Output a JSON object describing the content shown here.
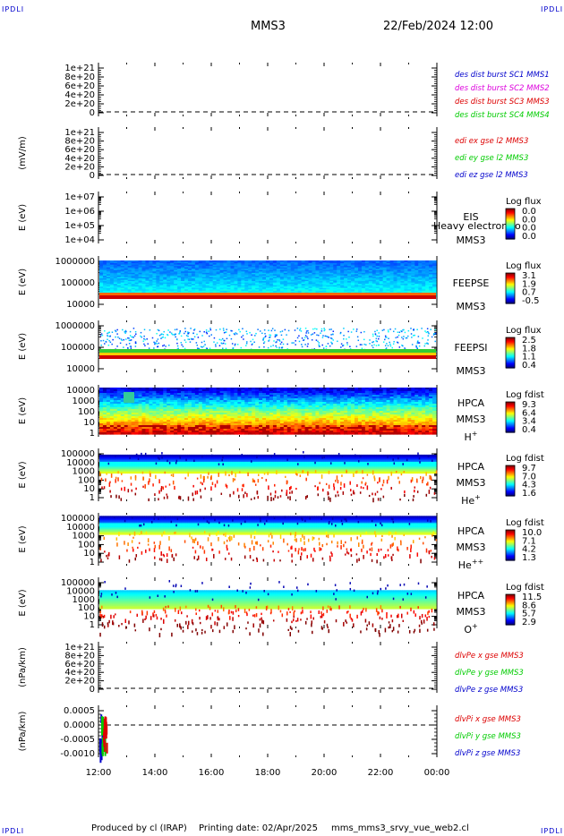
{
  "header": {
    "corner_tl": "IPDLI",
    "corner_tr": "IPDLI",
    "corner_bl": "IPDLI",
    "corner_br": "IPDLI",
    "spacecraft": "MMS3",
    "datetime": "22/Feb/2024 12:00"
  },
  "footer": {
    "produced_by": "Produced by cl (IRAP)",
    "printing_date": "Printing date: 02/Apr/2025",
    "filename": "mms_mms3_srvy_vue_web2.cl"
  },
  "colors": {
    "red": "#dd0000",
    "green": "#00cc00",
    "blue": "#0000cc",
    "magenta": "#dd00dd"
  },
  "chart_data": [
    {
      "type": "line",
      "ylabel": "",
      "yticks": [
        "1e+21",
        "8e+20",
        "6e+20",
        "4e+20",
        "2e+20",
        "0"
      ],
      "series": [
        {
          "name": "des dist burst SC1 MMS1",
          "color": "#0000cc",
          "values": []
        },
        {
          "name": "des dist burst SC2 MMS2",
          "color": "#dd00dd",
          "values": []
        },
        {
          "name": "des dist burst SC3 MMS3",
          "color": "#dd0000",
          "values": []
        },
        {
          "name": "des dist burst SC4 MMS4",
          "color": "#00cc00",
          "values": []
        }
      ],
      "zero_line": true
    },
    {
      "type": "line",
      "ylabel": "(mV/m)",
      "yticks": [
        "1e+21",
        "8e+20",
        "6e+20",
        "4e+20",
        "2e+20",
        "0"
      ],
      "series": [
        {
          "name": "edi ex gse l2 MMS3",
          "color": "#dd0000",
          "values": []
        },
        {
          "name": "edi ey gse l2 MMS3",
          "color": "#00cc00",
          "values": []
        },
        {
          "name": "edi ez gse l2 MMS3",
          "color": "#0000cc",
          "values": []
        }
      ],
      "zero_line": true
    },
    {
      "type": "heatmap",
      "ylabel": "E (eV)",
      "yticks": [
        "1e+07",
        "1e+06",
        "1e+05",
        "1e+04"
      ],
      "instrument": "EIS",
      "spacecraft": "MMS3",
      "overlay_text": "Heavy electron to",
      "colorbar_title": "Log flux",
      "colorbar_ticks": [
        "0.0",
        "0.0",
        "0.0",
        "0.0"
      ],
      "empty": true
    },
    {
      "type": "heatmap",
      "ylabel": "E (eV)",
      "yticks": [
        "1000000",
        "100000",
        "10000"
      ],
      "instrument": "FEEPSE",
      "spacecraft": "MMS3",
      "colorbar_title": "Log flux",
      "colorbar_ticks": [
        "3.1",
        "1.9",
        "0.7",
        "-0.5"
      ]
    },
    {
      "type": "heatmap",
      "ylabel": "E (eV)",
      "yticks": [
        "1000000",
        "100000",
        "10000"
      ],
      "instrument": "FEEPSI",
      "spacecraft": "MMS3",
      "colorbar_title": "Log flux",
      "colorbar_ticks": [
        "2.5",
        "1.8",
        "1.1",
        "0.4"
      ]
    },
    {
      "type": "heatmap",
      "ylabel": "E (eV)",
      "yticks": [
        "10000",
        "1000",
        "100",
        "10",
        "1"
      ],
      "instrument": "HPCA",
      "spacecraft": "MMS3",
      "species": "H",
      "species_sup": "+",
      "colorbar_title": "Log fdist",
      "colorbar_ticks": [
        "9.3",
        "6.4",
        "3.4",
        "0.4"
      ]
    },
    {
      "type": "heatmap",
      "ylabel": "E (eV)",
      "yticks": [
        "100000",
        "10000",
        "1000",
        "100",
        "10",
        "1"
      ],
      "instrument": "HPCA",
      "spacecraft": "MMS3",
      "species": "He",
      "species_sup": "+",
      "colorbar_title": "Log fdist",
      "colorbar_ticks": [
        "9.7",
        "7.0",
        "4.3",
        "1.6"
      ]
    },
    {
      "type": "heatmap",
      "ylabel": "E (eV)",
      "yticks": [
        "100000",
        "10000",
        "1000",
        "100",
        "10",
        "1"
      ],
      "instrument": "HPCA",
      "spacecraft": "MMS3",
      "species": "He",
      "species_sup": "++",
      "colorbar_title": "Log fdist",
      "colorbar_ticks": [
        "10.0",
        "7.1",
        "4.2",
        "1.3"
      ]
    },
    {
      "type": "heatmap",
      "ylabel": "E (eV)",
      "yticks": [
        "100000",
        "10000",
        "1000",
        "100",
        "10",
        "1"
      ],
      "instrument": "HPCA",
      "spacecraft": "MMS3",
      "species": "O",
      "species_sup": "+",
      "colorbar_title": "Log fdist",
      "colorbar_ticks": [
        "11.5",
        "8.6",
        "5.7",
        "2.9"
      ]
    },
    {
      "type": "line",
      "ylabel": "(nPa/km)",
      "yticks": [
        "1e+21",
        "8e+20",
        "6e+20",
        "4e+20",
        "2e+20",
        "0"
      ],
      "series": [
        {
          "name": "dlvPe x gse MMS3",
          "color": "#dd0000",
          "values": []
        },
        {
          "name": "dlvPe y gse MMS3",
          "color": "#00cc00",
          "values": []
        },
        {
          "name": "dlvPe z gse MMS3",
          "color": "#0000cc",
          "values": []
        }
      ],
      "zero_line": true
    },
    {
      "type": "line",
      "ylabel": "(nPa/km)",
      "yticks": [
        "0.0005",
        "0.0000",
        "-0.0005",
        "-0.0010"
      ],
      "ylim": [
        -0.0013,
        0.0008
      ],
      "series": [
        {
          "name": "dlvPi x gse MMS3",
          "color": "#dd0000",
          "values": []
        },
        {
          "name": "dlvPi y gse MMS3",
          "color": "#00cc00",
          "values": []
        },
        {
          "name": "dlvPi z gse MMS3",
          "color": "#0000cc",
          "values": []
        }
      ],
      "zero_line": true
    }
  ],
  "x_axis": {
    "ticks": [
      "12:00",
      "14:00",
      "16:00",
      "18:00",
      "20:00",
      "22:00",
      "00:00"
    ]
  }
}
